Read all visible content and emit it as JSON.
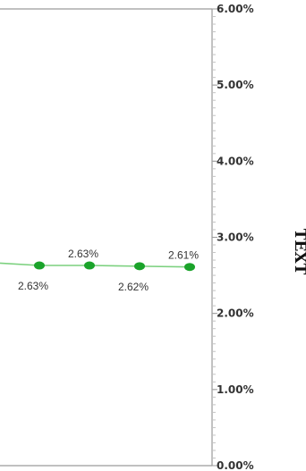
{
  "chart_data": {
    "type": "line",
    "title": "",
    "xlabel": "",
    "ylabel": "TEXT",
    "y_axis_position": "right",
    "ylim": [
      0,
      6
    ],
    "y_ticks": [
      "0.00%",
      "1.00%",
      "2.00%",
      "3.00%",
      "4.00%",
      "5.00%",
      "6.00%"
    ],
    "grid": false,
    "legend": "none",
    "series": [
      {
        "color": "#1aa32a",
        "line_color": "#7cd17f",
        "points": [
          {
            "y": 2.63,
            "label": "2.63%"
          },
          {
            "y": 2.63,
            "label": "2.63%"
          },
          {
            "y": 2.62,
            "label": "2.62%"
          },
          {
            "y": 2.61,
            "label": "2.61%"
          }
        ],
        "label_positions": [
          "below",
          "above",
          "below",
          "above"
        ],
        "trend_start": 2.66
      }
    ]
  }
}
